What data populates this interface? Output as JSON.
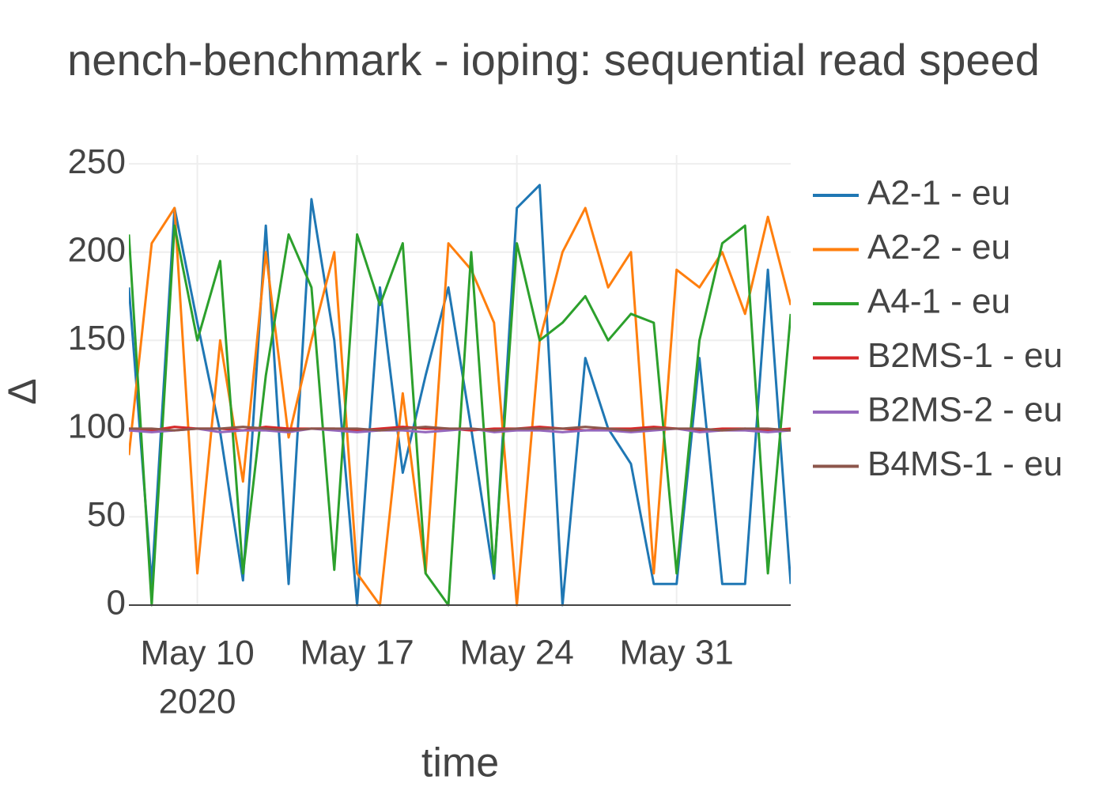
{
  "chart_data": {
    "type": "line",
    "title": "nench-benchmark - ioping: sequential read speed",
    "x_label": "time",
    "y_label": "Δ",
    "x": [
      "2020-05-07",
      "2020-05-08",
      "2020-05-09",
      "2020-05-10",
      "2020-05-11",
      "2020-05-12",
      "2020-05-13",
      "2020-05-14",
      "2020-05-15",
      "2020-05-16",
      "2020-05-17",
      "2020-05-18",
      "2020-05-19",
      "2020-05-20",
      "2020-05-21",
      "2020-05-22",
      "2020-05-23",
      "2020-05-24",
      "2020-05-25",
      "2020-05-26",
      "2020-05-27",
      "2020-05-28",
      "2020-05-29",
      "2020-05-30",
      "2020-05-31",
      "2020-06-01",
      "2020-06-02",
      "2020-06-03",
      "2020-06-04",
      "2020-06-05"
    ],
    "series": [
      {
        "name": "A2-1 - eu",
        "color": "#1f77b4",
        "values": [
          180,
          12,
          225,
          160,
          98,
          14,
          215,
          12,
          230,
          150,
          0,
          180,
          75,
          130,
          180,
          100,
          15,
          225,
          238,
          0,
          140,
          100,
          80,
          12,
          12,
          140,
          12,
          12,
          190,
          12
        ]
      },
      {
        "name": "A2-2 - eu",
        "color": "#ff7f0e",
        "values": [
          85,
          205,
          225,
          18,
          150,
          70,
          200,
          95,
          150,
          200,
          18,
          0,
          120,
          18,
          205,
          190,
          160,
          0,
          150,
          200,
          225,
          180,
          200,
          18,
          190,
          180,
          200,
          165,
          220,
          170
        ]
      },
      {
        "name": "A4-1 - eu",
        "color": "#2ca02c",
        "values": [
          210,
          0,
          215,
          150,
          195,
          18,
          130,
          210,
          180,
          20,
          210,
          170,
          205,
          18,
          0,
          200,
          18,
          205,
          150,
          160,
          175,
          150,
          165,
          160,
          18,
          150,
          205,
          215,
          18,
          165
        ]
      },
      {
        "name": "B2MS-1 - eu",
        "color": "#d62728",
        "values": [
          100,
          99,
          101,
          100,
          100,
          99,
          101,
          100,
          100,
          100,
          99,
          100,
          101,
          100,
          100,
          99,
          100,
          100,
          101,
          100,
          99,
          100,
          100,
          101,
          100,
          99,
          100,
          100,
          99,
          100
        ]
      },
      {
        "name": "B2MS-2 - eu",
        "color": "#9467bd",
        "values": [
          99,
          98,
          99,
          100,
          98,
          99,
          99,
          98,
          100,
          99,
          98,
          99,
          99,
          98,
          99,
          100,
          98,
          99,
          99,
          98,
          99,
          99,
          98,
          99,
          100,
          98,
          99,
          99,
          98,
          99
        ]
      },
      {
        "name": "B4MS-1 - eu",
        "color": "#8c564b",
        "values": [
          100,
          100,
          99,
          100,
          100,
          101,
          100,
          99,
          100,
          100,
          100,
          99,
          100,
          101,
          100,
          100,
          99,
          100,
          100,
          100,
          101,
          100,
          99,
          100,
          100,
          100,
          99,
          100,
          100,
          99
        ]
      }
    ],
    "xlim": [
      "2020-05-07",
      "2020-06-05"
    ],
    "xticks": [
      {
        "value": "2020-05-10",
        "label": "May 10\n2020"
      },
      {
        "value": "2020-05-17",
        "label": "May 17"
      },
      {
        "value": "2020-05-24",
        "label": "May 24"
      },
      {
        "value": "2020-05-31",
        "label": "May 31"
      }
    ],
    "ylim": [
      0,
      255
    ],
    "yticks": [
      0,
      50,
      100,
      150,
      200,
      250
    ],
    "grid": true,
    "legend": "right"
  }
}
